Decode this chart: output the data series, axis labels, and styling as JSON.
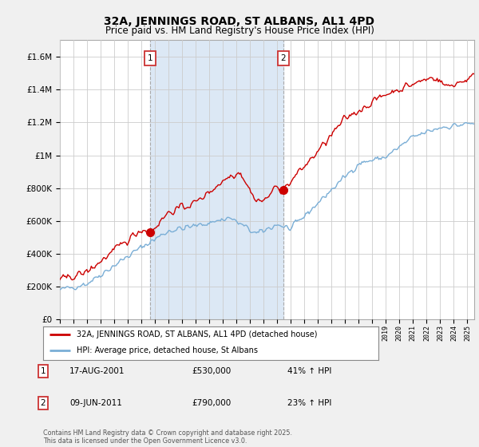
{
  "title": "32A, JENNINGS ROAD, ST ALBANS, AL1 4PD",
  "subtitle": "Price paid vs. HM Land Registry's House Price Index (HPI)",
  "title_fontsize": 10,
  "subtitle_fontsize": 8.5,
  "bg_color": "#f0f0f0",
  "plot_bg_color": "#ffffff",
  "grid_color": "#cccccc",
  "red_color": "#cc0000",
  "blue_color": "#7aaed6",
  "shade_color": "#dce8f5",
  "marker1_year": 2001.63,
  "marker1_value": 530000,
  "marker2_year": 2011.44,
  "marker2_value": 790000,
  "ylim": [
    0,
    1700000
  ],
  "yticks": [
    0,
    200000,
    400000,
    600000,
    800000,
    1000000,
    1200000,
    1400000,
    1600000
  ],
  "legend_red_label": "32A, JENNINGS ROAD, ST ALBANS, AL1 4PD (detached house)",
  "legend_blue_label": "HPI: Average price, detached house, St Albans",
  "annotation1_date": "17-AUG-2001",
  "annotation1_price": "£530,000",
  "annotation1_hpi": "41% ↑ HPI",
  "annotation2_date": "09-JUN-2011",
  "annotation2_price": "£790,000",
  "annotation2_hpi": "23% ↑ HPI",
  "footer": "Contains HM Land Registry data © Crown copyright and database right 2025.\nThis data is licensed under the Open Government Licence v3.0.",
  "xmin": 1995,
  "xmax": 2025.5
}
